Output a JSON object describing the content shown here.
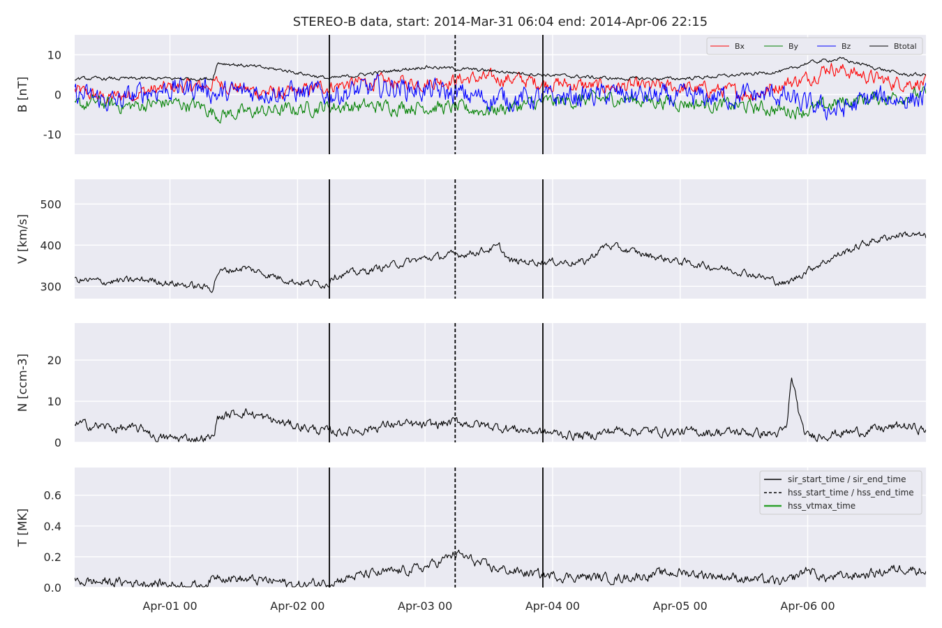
{
  "chart_data": {
    "type": "line",
    "title": "STEREO-B data, start: 2014-Mar-31 06:04  end: 2014-Apr-06 22:15",
    "grid": true,
    "x_axis": {
      "range": [
        "2014-03-31 06:04",
        "2014-04-06 22:15"
      ],
      "tick_values": [
        "2014-04-01 00:00",
        "2014-04-02 00:00",
        "2014-04-03 00:00",
        "2014-04-04 00:00",
        "2014-04-05 00:00",
        "2014-04-06 00:00"
      ],
      "tick_labels": [
        "Apr-01 00",
        "Apr-02 00",
        "Apr-03 00",
        "Apr-04 00",
        "Apr-05 00",
        "Apr-06 00"
      ]
    },
    "markers": [
      {
        "time": "2014-04-02 06:00",
        "style": "solid"
      },
      {
        "time": "2014-04-03 05:40",
        "style": "dashed"
      },
      {
        "time": "2014-04-03 22:10",
        "style": "solid"
      }
    ],
    "legend_events": {
      "placement": "top-right of bottom panel",
      "entries": [
        {
          "label": "sir_start_time / sir_end_time",
          "style": "solid",
          "color": "#000000"
        },
        {
          "label": "hss_start_time / hss_end_time",
          "style": "dashed",
          "color": "#000000"
        },
        {
          "label": "hss_vtmax_time",
          "style": "solid",
          "color": "#2ca02c"
        }
      ]
    },
    "panels": [
      {
        "ylabel": "B [nT]",
        "ylim": [
          -15,
          15
        ],
        "yticks": [
          -10,
          0,
          10
        ],
        "legend_placement": "top-right",
        "series": [
          {
            "name": "Bx",
            "color": "#ff0000",
            "noise": 1.4,
            "points": [
              [
                "2014-03-31 06:04",
                1
              ],
              [
                "2014-03-31 12:00",
                -1
              ],
              [
                "2014-03-31 20:00",
                1
              ],
              [
                "2014-04-01 02:00",
                2
              ],
              [
                "2014-04-01 06:00",
                2
              ],
              [
                "2014-04-01 09:00",
                3
              ],
              [
                "2014-04-01 15:00",
                1
              ],
              [
                "2014-04-01 22:00",
                0
              ],
              [
                "2014-04-02 05:00",
                2
              ],
              [
                "2014-04-02 12:00",
                3
              ],
              [
                "2014-04-02 18:00",
                3
              ],
              [
                "2014-04-03 00:00",
                3
              ],
              [
                "2014-04-03 08:00",
                4
              ],
              [
                "2014-04-03 16:00",
                4
              ],
              [
                "2014-04-03 22:00",
                3
              ],
              [
                "2014-04-04 08:00",
                2
              ],
              [
                "2014-04-04 20:00",
                2
              ],
              [
                "2014-04-05 08:00",
                1
              ],
              [
                "2014-04-05 14:00",
                0
              ],
              [
                "2014-04-05 20:00",
                3
              ],
              [
                "2014-04-06 00:00",
                4
              ],
              [
                "2014-04-06 04:00",
                7
              ],
              [
                "2014-04-06 10:00",
                5
              ],
              [
                "2014-04-06 16:00",
                3
              ],
              [
                "2014-04-06 22:15",
                3
              ]
            ]
          },
          {
            "name": "By",
            "color": "#008000",
            "noise": 1.4,
            "points": [
              [
                "2014-03-31 06:04",
                -3
              ],
              [
                "2014-03-31 10:00",
                -2
              ],
              [
                "2014-03-31 16:00",
                -3
              ],
              [
                "2014-04-01 00:00",
                -2
              ],
              [
                "2014-04-01 06:00",
                -3
              ],
              [
                "2014-04-01 09:00",
                -5
              ],
              [
                "2014-04-01 20:00",
                -4
              ],
              [
                "2014-04-02 06:00",
                -3
              ],
              [
                "2014-04-02 18:00",
                -3
              ],
              [
                "2014-04-03 00:00",
                -3
              ],
              [
                "2014-04-03 12:00",
                -4
              ],
              [
                "2014-04-03 22:00",
                -2
              ],
              [
                "2014-04-04 12:00",
                -1
              ],
              [
                "2014-04-05 00:00",
                -2
              ],
              [
                "2014-04-05 12:00",
                -3
              ],
              [
                "2014-04-05 20:00",
                -4
              ],
              [
                "2014-04-06 00:00",
                -4
              ],
              [
                "2014-04-06 06:00",
                -2
              ],
              [
                "2014-04-06 12:00",
                -1
              ],
              [
                "2014-04-06 22:15",
                0
              ]
            ]
          },
          {
            "name": "Bz",
            "color": "#0000ff",
            "noise": 2.2,
            "points": [
              [
                "2014-03-31 06:04",
                0
              ],
              [
                "2014-03-31 14:00",
                -2
              ],
              [
                "2014-03-31 20:00",
                1
              ],
              [
                "2014-04-01 06:00",
                2
              ],
              [
                "2014-04-01 09:00",
                0
              ],
              [
                "2014-04-01 18:00",
                1
              ],
              [
                "2014-04-02 06:00",
                0
              ],
              [
                "2014-04-02 12:00",
                1
              ],
              [
                "2014-04-02 18:00",
                2
              ],
              [
                "2014-04-03 00:00",
                1
              ],
              [
                "2014-04-03 12:00",
                -1
              ],
              [
                "2014-04-03 22:00",
                -1
              ],
              [
                "2014-04-04 12:00",
                0
              ],
              [
                "2014-04-05 00:00",
                -1
              ],
              [
                "2014-04-05 18:00",
                0
              ],
              [
                "2014-04-06 00:00",
                -3
              ],
              [
                "2014-04-06 06:00",
                -4
              ],
              [
                "2014-04-06 12:00",
                -1
              ],
              [
                "2014-04-06 22:15",
                -1
              ]
            ]
          },
          {
            "name": "Btotal",
            "color": "#000000",
            "noise": 0.35,
            "points": [
              [
                "2014-03-31 06:04",
                4
              ],
              [
                "2014-04-01 00:00",
                4
              ],
              [
                "2014-04-01 08:00",
                4
              ],
              [
                "2014-04-01 09:00",
                8
              ],
              [
                "2014-04-01 16:00",
                7
              ],
              [
                "2014-04-01 22:00",
                6
              ],
              [
                "2014-04-02 06:00",
                4
              ],
              [
                "2014-04-02 12:00",
                5
              ],
              [
                "2014-04-02 18:00",
                6
              ],
              [
                "2014-04-03 00:00",
                7
              ],
              [
                "2014-04-03 12:00",
                6
              ],
              [
                "2014-04-03 22:00",
                5
              ],
              [
                "2014-04-04 12:00",
                4
              ],
              [
                "2014-04-05 00:00",
                4
              ],
              [
                "2014-04-05 12:00",
                5
              ],
              [
                "2014-04-05 20:00",
                6
              ],
              [
                "2014-04-06 00:00",
                8
              ],
              [
                "2014-04-06 06:00",
                9
              ],
              [
                "2014-04-06 12:00",
                7
              ],
              [
                "2014-04-06 18:00",
                5
              ],
              [
                "2014-04-06 22:15",
                5
              ]
            ]
          }
        ]
      },
      {
        "ylabel": "V [km/s]",
        "ylim": [
          270,
          560
        ],
        "yticks": [
          300,
          400,
          500
        ],
        "series": [
          {
            "name": "",
            "color": "#000000",
            "noise": 7,
            "points": [
              [
                "2014-03-31 06:04",
                315
              ],
              [
                "2014-03-31 12:00",
                311
              ],
              [
                "2014-03-31 20:00",
                316
              ],
              [
                "2014-04-01 00:00",
                308
              ],
              [
                "2014-04-01 08:00",
                295
              ],
              [
                "2014-04-01 09:00",
                335
              ],
              [
                "2014-04-01 14:00",
                345
              ],
              [
                "2014-04-01 18:00",
                330
              ],
              [
                "2014-04-02 00:00",
                310
              ],
              [
                "2014-04-02 06:00",
                305
              ],
              [
                "2014-04-02 06:10",
                325
              ],
              [
                "2014-04-02 12:00",
                335
              ],
              [
                "2014-04-02 18:00",
                352
              ],
              [
                "2014-04-03 00:00",
                368
              ],
              [
                "2014-04-03 08:00",
                380
              ],
              [
                "2014-04-03 14:00",
                395
              ],
              [
                "2014-04-03 16:00",
                360
              ],
              [
                "2014-04-03 22:00",
                360
              ],
              [
                "2014-04-04 06:00",
                358
              ],
              [
                "2014-04-04 10:00",
                400
              ],
              [
                "2014-04-04 18:00",
                375
              ],
              [
                "2014-04-05 00:00",
                360
              ],
              [
                "2014-04-05 12:00",
                335
              ],
              [
                "2014-04-05 20:00",
                305
              ],
              [
                "2014-04-06 00:00",
                340
              ],
              [
                "2014-04-06 06:00",
                378
              ],
              [
                "2014-04-06 12:00",
                410
              ],
              [
                "2014-04-06 18:00",
                428
              ],
              [
                "2014-04-06 22:15",
                420
              ]
            ]
          }
        ]
      },
      {
        "ylabel": "N [ccm-3]",
        "ylim": [
          0,
          29
        ],
        "yticks": [
          0,
          10,
          20
        ],
        "series": [
          {
            "name": "",
            "color": "#000000",
            "noise": 0.9,
            "points": [
              [
                "2014-03-31 06:04",
                4.5
              ],
              [
                "2014-03-31 14:00",
                3.5
              ],
              [
                "2014-03-31 20:00",
                3
              ],
              [
                "2014-03-31 21:00",
                1
              ],
              [
                "2014-04-01 08:00",
                1
              ],
              [
                "2014-04-01 09:00",
                6
              ],
              [
                "2014-04-01 14:00",
                7.5
              ],
              [
                "2014-04-01 20:00",
                5
              ],
              [
                "2014-04-02 06:00",
                2.5
              ],
              [
                "2014-04-02 12:00",
                3
              ],
              [
                "2014-04-02 18:00",
                4.5
              ],
              [
                "2014-04-03 00:00",
                4
              ],
              [
                "2014-04-03 06:00",
                5
              ],
              [
                "2014-04-03 12:00",
                4
              ],
              [
                "2014-04-03 22:00",
                2.5
              ],
              [
                "2014-04-04 06:00",
                1.5
              ],
              [
                "2014-04-04 12:00",
                3
              ],
              [
                "2014-04-05 00:00",
                2.5
              ],
              [
                "2014-04-05 12:00",
                2.5
              ],
              [
                "2014-04-05 18:00",
                2
              ],
              [
                "2014-04-05 20:00",
                3
              ],
              [
                "2014-04-05 21:00",
                16
              ],
              [
                "2014-04-05 23:00",
                3
              ],
              [
                "2014-04-06 00:00",
                1.5
              ],
              [
                "2014-04-06 12:00",
                3
              ],
              [
                "2014-04-06 18:00",
                4
              ],
              [
                "2014-04-06 22:15",
                3
              ]
            ]
          }
        ]
      },
      {
        "ylabel": "T [MK]",
        "ylim": [
          0.0,
          0.78
        ],
        "yticks": [
          0.0,
          0.2,
          0.4,
          0.6
        ],
        "tick_labels": [
          "0.0",
          "0.2",
          "0.4",
          "0.6"
        ],
        "series": [
          {
            "name": "",
            "color": "#000000",
            "noise": 0.025,
            "points": [
              [
                "2014-03-31 06:04",
                0.04
              ],
              [
                "2014-03-31 20:00",
                0.03
              ],
              [
                "2014-04-01 06:00",
                0.01
              ],
              [
                "2014-04-01 09:00",
                0.08
              ],
              [
                "2014-04-01 14:00",
                0.05
              ],
              [
                "2014-04-01 20:00",
                0.04
              ],
              [
                "2014-04-02 00:00",
                0.01
              ],
              [
                "2014-04-02 06:00",
                0.04
              ],
              [
                "2014-04-02 12:00",
                0.08
              ],
              [
                "2014-04-02 18:00",
                0.1
              ],
              [
                "2014-04-03 00:00",
                0.13
              ],
              [
                "2014-04-03 06:00",
                0.22
              ],
              [
                "2014-04-03 12:00",
                0.13
              ],
              [
                "2014-04-03 22:00",
                0.08
              ],
              [
                "2014-04-04 12:00",
                0.06
              ],
              [
                "2014-04-05 00:00",
                0.1
              ],
              [
                "2014-04-05 12:00",
                0.06
              ],
              [
                "2014-04-05 20:00",
                0.03
              ],
              [
                "2014-04-06 00:00",
                0.12
              ],
              [
                "2014-04-06 03:00",
                0.06
              ],
              [
                "2014-04-06 12:00",
                0.09
              ],
              [
                "2014-04-06 18:00",
                0.13
              ],
              [
                "2014-04-06 22:15",
                0.11
              ]
            ]
          }
        ]
      }
    ]
  }
}
